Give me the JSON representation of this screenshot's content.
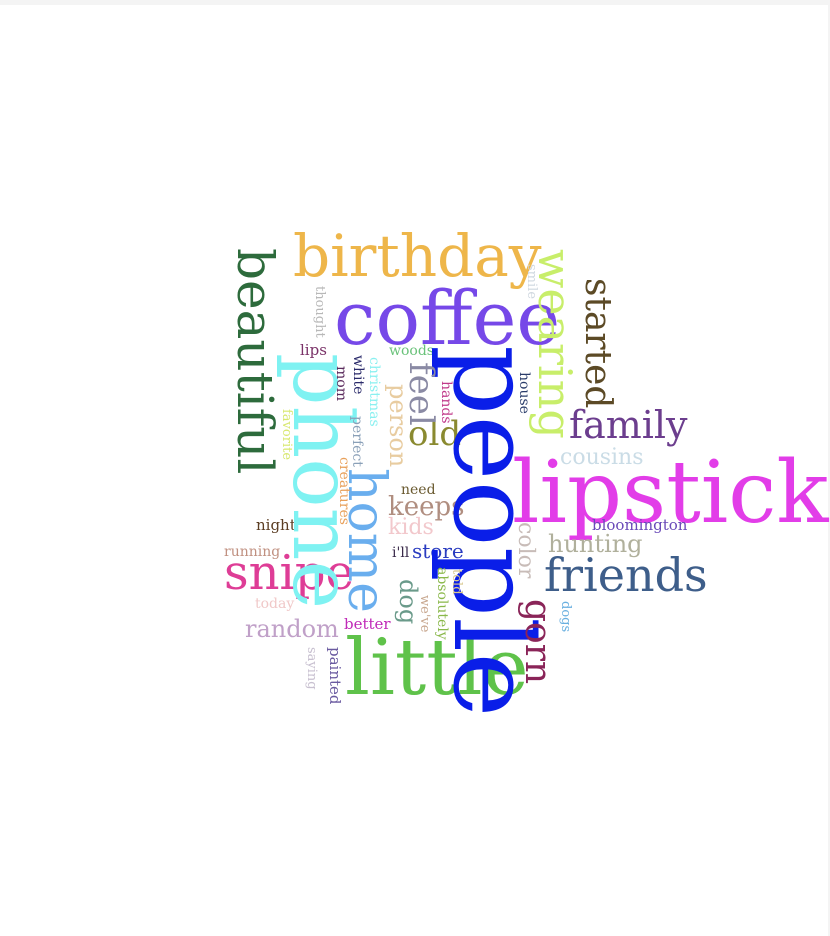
{
  "words": [
    {
      "text": "people",
      "color": "#0a1ee8",
      "vertical": true
    },
    {
      "text": "lipstick",
      "color": "#e23de8",
      "vertical": false
    },
    {
      "text": "coffee",
      "color": "#7648e8",
      "vertical": false
    },
    {
      "text": "little",
      "color": "#5fc24a",
      "vertical": false
    },
    {
      "text": "phone",
      "color": "#7ff2f2",
      "vertical": true
    },
    {
      "text": "birthday",
      "color": "#eeb64a",
      "vertical": false
    },
    {
      "text": "beautiful",
      "color": "#2d6b3c",
      "vertical": true
    },
    {
      "text": "wearing",
      "color": "#c8ee6a",
      "vertical": true
    },
    {
      "text": "home",
      "color": "#6aaeee",
      "vertical": true
    },
    {
      "text": "snipe",
      "color": "#de3d96",
      "vertical": false
    },
    {
      "text": "friends",
      "color": "#3e5e8a",
      "vertical": false
    },
    {
      "text": "family",
      "color": "#6c3e8e",
      "vertical": false
    },
    {
      "text": "started",
      "color": "#5c4a26",
      "vertical": true
    },
    {
      "text": "gorn",
      "color": "#8a2458",
      "vertical": true
    },
    {
      "text": "random",
      "color": "#c0a0c8",
      "vertical": false
    },
    {
      "text": "old",
      "color": "#8a8a30",
      "vertical": false
    },
    {
      "text": "feel",
      "color": "#8a8aa4",
      "vertical": true
    },
    {
      "text": "hunting",
      "color": "#b0b09c",
      "vertical": false
    },
    {
      "text": "cousins",
      "color": "#cadce6",
      "vertical": false
    },
    {
      "text": "keeps",
      "color": "#b08e80",
      "vertical": false
    },
    {
      "text": "person",
      "color": "#e8cca0",
      "vertical": true
    },
    {
      "text": "dog",
      "color": "#6a9a8a",
      "vertical": true
    },
    {
      "text": "kids",
      "color": "#f2c8cc",
      "vertical": false
    },
    {
      "text": "store",
      "color": "#2a3cc0",
      "vertical": false
    },
    {
      "text": "color",
      "color": "#c8bcb8",
      "vertical": true
    },
    {
      "text": "bloomington",
      "color": "#6a4ab8",
      "vertical": false
    },
    {
      "text": "night",
      "color": "#5c3e24",
      "vertical": false
    },
    {
      "text": "running",
      "color": "#c09080",
      "vertical": false
    },
    {
      "text": "today",
      "color": "#f0c8c8",
      "vertical": false
    },
    {
      "text": "better",
      "color": "#c02ab8",
      "vertical": false
    },
    {
      "text": "need",
      "color": "#6a5a30",
      "vertical": false
    },
    {
      "text": "woods",
      "color": "#6ac27a",
      "vertical": false
    },
    {
      "text": "lips",
      "color": "#7a3268",
      "vertical": false
    },
    {
      "text": "mom",
      "color": "#5a2a5c",
      "vertical": true
    },
    {
      "text": "white",
      "color": "#2a2a6a",
      "vertical": true
    },
    {
      "text": "christmas",
      "color": "#8af0f0",
      "vertical": true
    },
    {
      "text": "perfect",
      "color": "#8aa0b8",
      "vertical": true
    },
    {
      "text": "creatures",
      "color": "#e8a05a",
      "vertical": true
    },
    {
      "text": "hands",
      "color": "#c03a8a",
      "vertical": true
    },
    {
      "text": "house",
      "color": "#2a3c6a",
      "vertical": true
    },
    {
      "text": "smile",
      "color": "#d0d8e0",
      "vertical": true
    },
    {
      "text": "thought",
      "color": "#b8b8b8",
      "vertical": true
    },
    {
      "text": "favorite",
      "color": "#d8e870",
      "vertical": true
    },
    {
      "text": "i'll",
      "color": "#3a2a4a",
      "vertical": false
    },
    {
      "text": "absolutely",
      "color": "#8ab84a",
      "vertical": true
    },
    {
      "text": "we've",
      "color": "#c8a890",
      "vertical": true
    },
    {
      "text": "told",
      "color": "#d8c890",
      "vertical": true
    },
    {
      "text": "dogs",
      "color": "#6ab0e0",
      "vertical": true
    },
    {
      "text": "painted",
      "color": "#6a5aa0",
      "vertical": true
    },
    {
      "text": "saying",
      "color": "#c8c0d0",
      "vertical": true
    }
  ]
}
